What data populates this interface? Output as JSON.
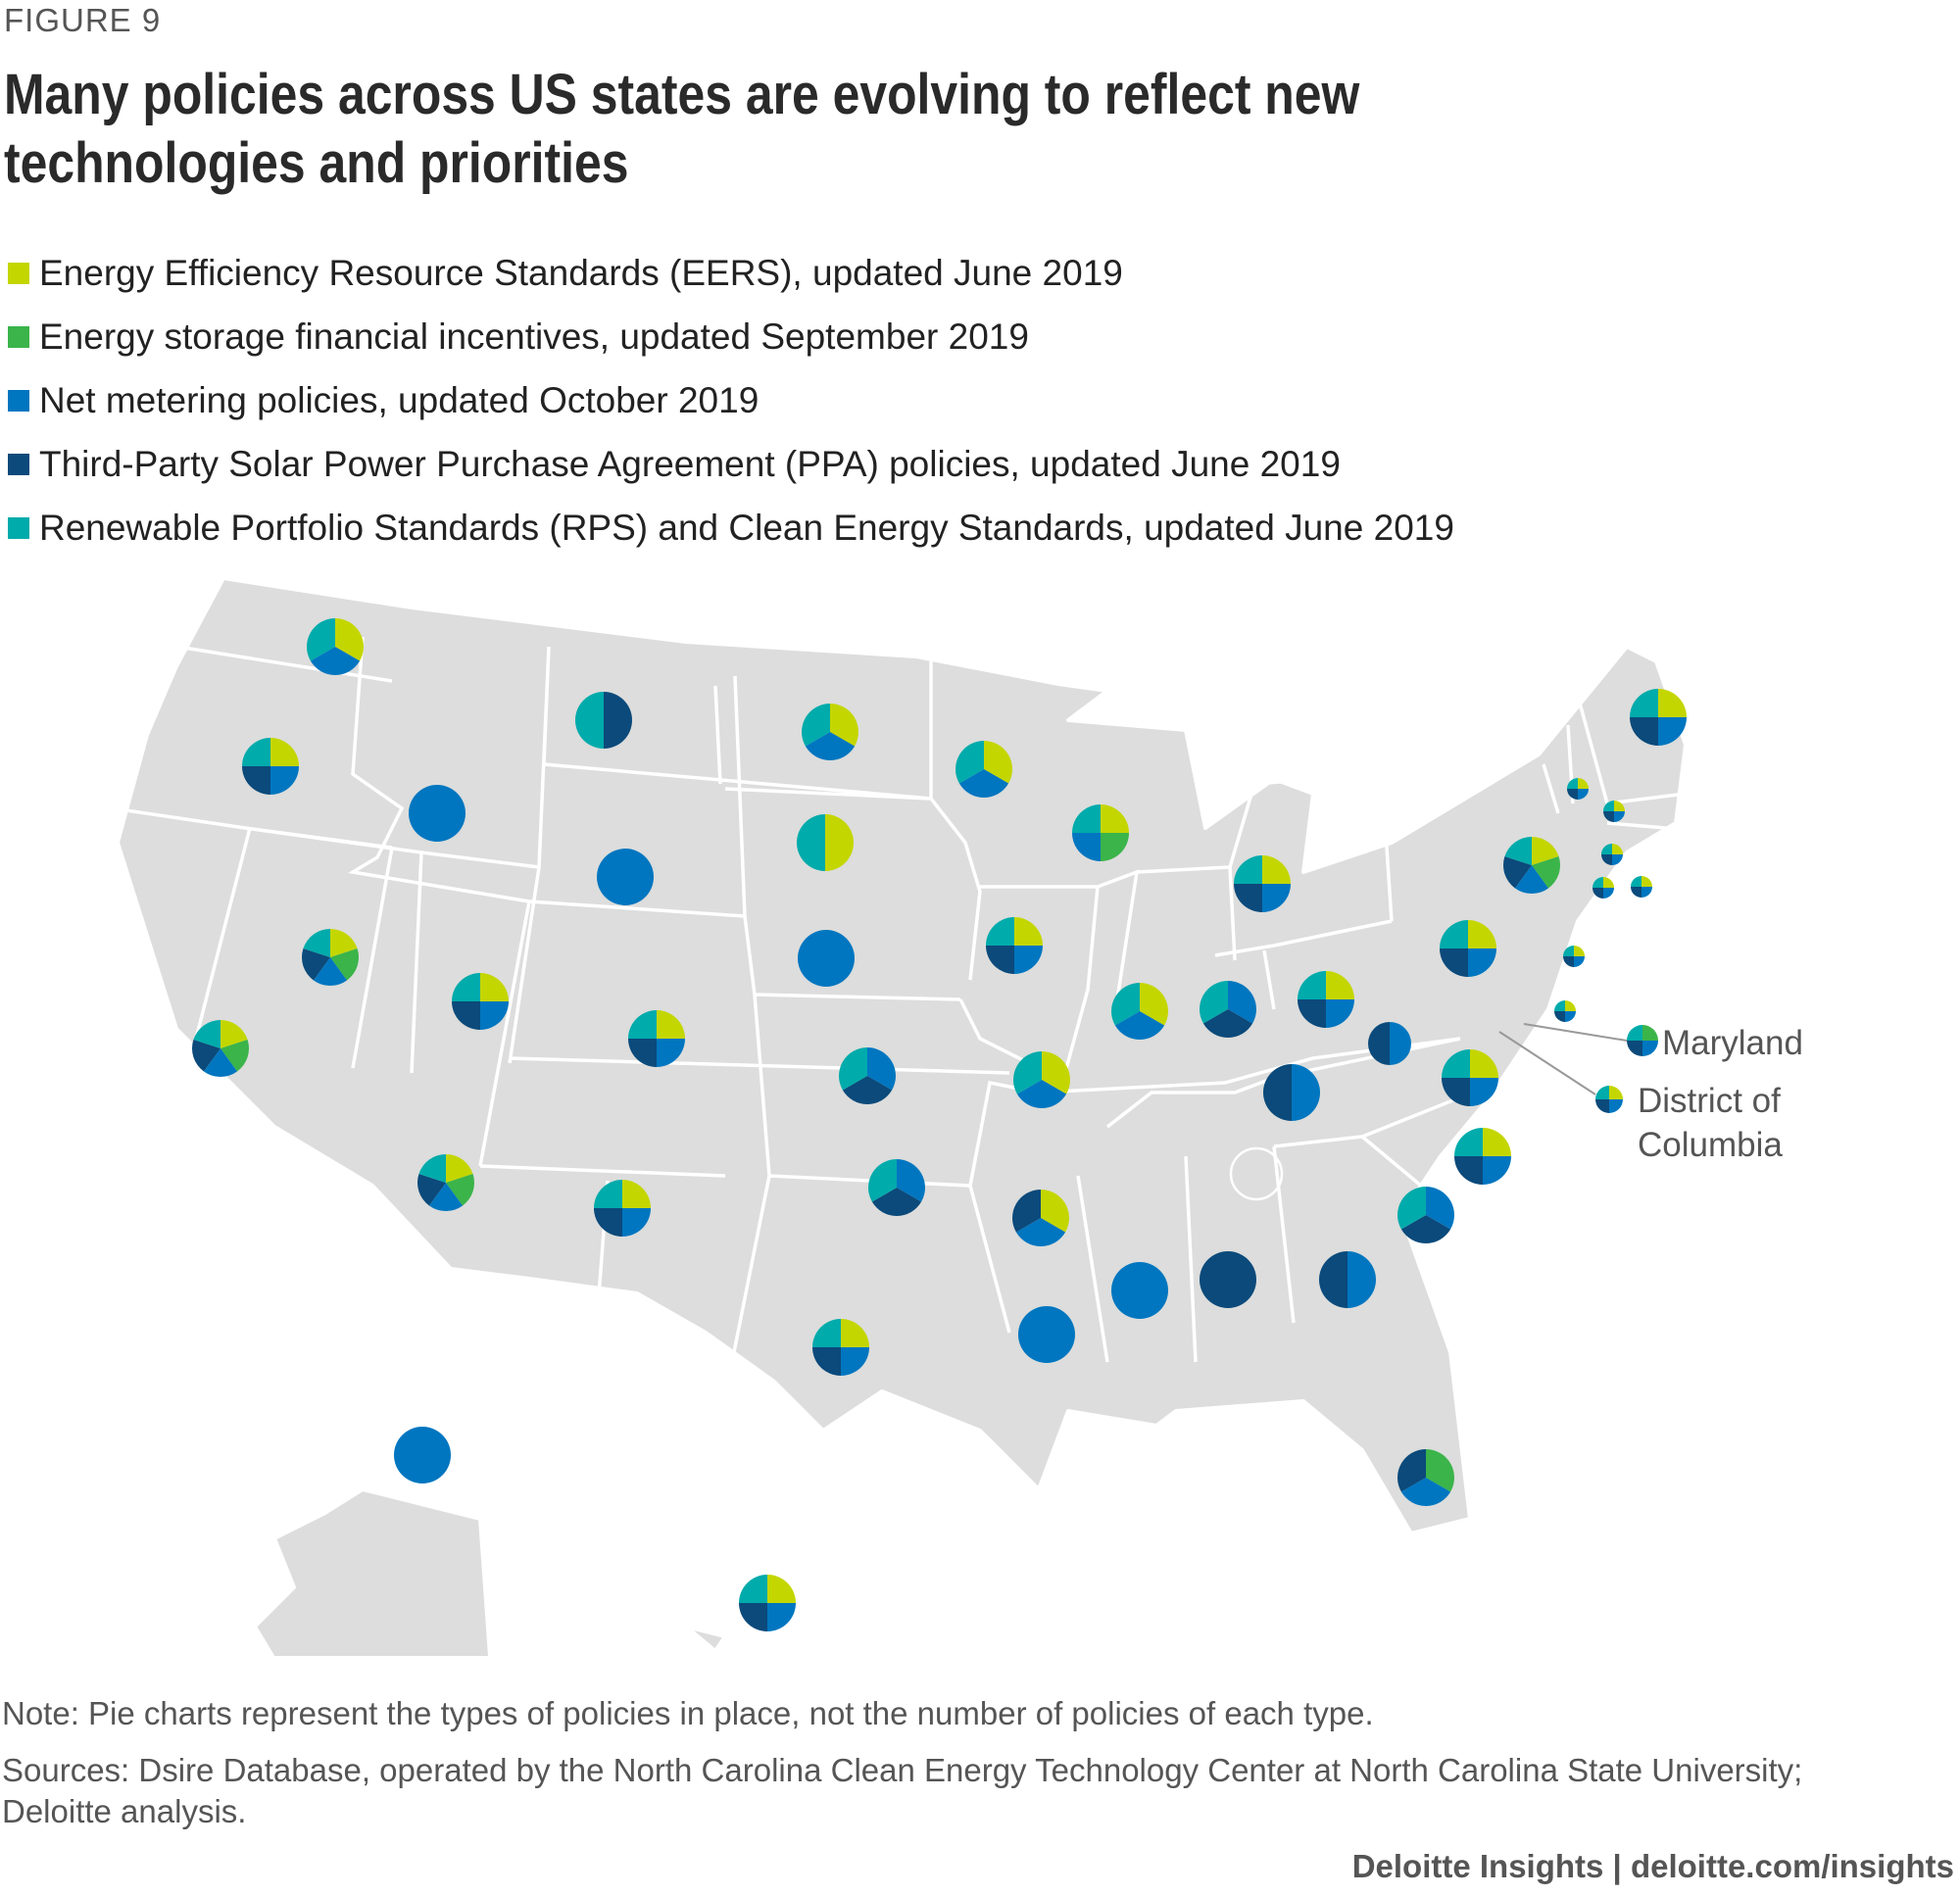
{
  "figure_label": "FIGURE 9",
  "title": "Many policies across US states are evolving to reflect new technologies and priorities",
  "legend": [
    {
      "key": "eers",
      "label": "Energy Efficiency Resource Standards (EERS), updated June 2019",
      "color": "#c4d600"
    },
    {
      "key": "storage",
      "label": "Energy storage financial incentives, updated September 2019",
      "color": "#3bb44a"
    },
    {
      "key": "net",
      "label": "Net metering policies, updated October 2019",
      "color": "#0076c0"
    },
    {
      "key": "ppa",
      "label": "Third-Party Solar Power Purchase Agreement (PPA) policies, updated June 2019",
      "color": "#0b4a7b"
    },
    {
      "key": "rps",
      "label": "Renewable Portfolio Standards (RPS) and Clean Energy Standards, updated June 2019",
      "color": "#00abab"
    }
  ],
  "callouts": {
    "maryland": "Maryland",
    "dc": "District of Columbia"
  },
  "note": "Note: Pie charts represent the types of policies in place, not the number of policies of each type.",
  "sources": "Sources: Dsire Database, operated by the North Carolina Clean Energy Technology Center at North Carolina State University; Deloitte analysis.",
  "brand": "Deloitte Insights | deloitte.com/insights",
  "chart_data": {
    "type": "pie",
    "title": "Policy types in place by US state",
    "series_order": [
      "eers",
      "storage",
      "net",
      "ppa",
      "rps"
    ],
    "states": [
      {
        "state": "WA",
        "policies": [
          "eers",
          "net",
          "rps"
        ]
      },
      {
        "state": "OR",
        "policies": [
          "eers",
          "net",
          "ppa",
          "rps"
        ]
      },
      {
        "state": "CA",
        "policies": [
          "eers",
          "storage",
          "net",
          "ppa",
          "rps"
        ]
      },
      {
        "state": "ID",
        "policies": [
          "net"
        ]
      },
      {
        "state": "NV",
        "policies": [
          "eers",
          "storage",
          "net",
          "ppa",
          "rps"
        ]
      },
      {
        "state": "MT",
        "policies": [
          "ppa",
          "rps"
        ]
      },
      {
        "state": "WY",
        "policies": [
          "net"
        ]
      },
      {
        "state": "UT",
        "policies": [
          "eers",
          "net",
          "ppa",
          "rps"
        ]
      },
      {
        "state": "AZ",
        "policies": [
          "eers",
          "storage",
          "net",
          "ppa",
          "rps"
        ]
      },
      {
        "state": "CO",
        "policies": [
          "eers",
          "net",
          "ppa",
          "rps"
        ]
      },
      {
        "state": "NM",
        "policies": [
          "eers",
          "net",
          "ppa",
          "rps"
        ]
      },
      {
        "state": "ND",
        "policies": [
          "eers",
          "net",
          "rps"
        ]
      },
      {
        "state": "SD",
        "policies": [
          "eers",
          "rps"
        ]
      },
      {
        "state": "NE",
        "policies": [
          "net"
        ]
      },
      {
        "state": "KS",
        "policies": [
          "net",
          "ppa",
          "rps"
        ]
      },
      {
        "state": "OK",
        "policies": [
          "net",
          "ppa",
          "rps"
        ]
      },
      {
        "state": "TX",
        "policies": [
          "eers",
          "net",
          "ppa",
          "rps"
        ]
      },
      {
        "state": "MN",
        "policies": [
          "eers",
          "net",
          "rps"
        ]
      },
      {
        "state": "IA",
        "policies": [
          "eers",
          "net",
          "ppa",
          "rps"
        ]
      },
      {
        "state": "MO",
        "policies": [
          "eers",
          "net",
          "rps"
        ]
      },
      {
        "state": "AR",
        "policies": [
          "eers",
          "net",
          "ppa"
        ]
      },
      {
        "state": "LA",
        "policies": [
          "net"
        ]
      },
      {
        "state": "WI",
        "policies": [
          "eers",
          "storage",
          "net",
          "rps"
        ]
      },
      {
        "state": "IL",
        "policies": [
          "eers",
          "net",
          "rps"
        ]
      },
      {
        "state": "MI",
        "policies": [
          "eers",
          "net",
          "ppa",
          "rps"
        ]
      },
      {
        "state": "IN",
        "policies": [
          "net",
          "ppa",
          "rps"
        ]
      },
      {
        "state": "OH",
        "policies": [
          "eers",
          "net",
          "ppa",
          "rps"
        ]
      },
      {
        "state": "KY",
        "policies": [
          "net",
          "ppa"
        ]
      },
      {
        "state": "TN",
        "policies": []
      },
      {
        "state": "MS",
        "policies": [
          "net"
        ]
      },
      {
        "state": "AL",
        "policies": [
          "ppa"
        ]
      },
      {
        "state": "GA",
        "policies": [
          "net",
          "ppa"
        ]
      },
      {
        "state": "FL",
        "policies": [
          "storage",
          "net",
          "ppa"
        ]
      },
      {
        "state": "SC",
        "policies": [
          "net",
          "ppa",
          "rps"
        ]
      },
      {
        "state": "NC",
        "policies": [
          "eers",
          "net",
          "ppa",
          "rps"
        ]
      },
      {
        "state": "VA",
        "policies": [
          "eers",
          "net",
          "ppa",
          "rps"
        ]
      },
      {
        "state": "WV",
        "policies": [
          "net",
          "ppa"
        ]
      },
      {
        "state": "PA",
        "policies": [
          "eers",
          "net",
          "ppa",
          "rps"
        ]
      },
      {
        "state": "NY",
        "policies": [
          "eers",
          "storage",
          "net",
          "ppa",
          "rps"
        ]
      },
      {
        "state": "ME",
        "policies": [
          "eers",
          "net",
          "ppa",
          "rps"
        ]
      },
      {
        "state": "VT",
        "policies": [
          "eers",
          "net",
          "ppa",
          "rps"
        ]
      },
      {
        "state": "NH",
        "policies": [
          "eers",
          "net",
          "ppa",
          "rps"
        ]
      },
      {
        "state": "MA",
        "policies": [
          "eers",
          "net",
          "ppa",
          "rps"
        ]
      },
      {
        "state": "RI",
        "policies": [
          "eers",
          "net",
          "ppa",
          "rps"
        ]
      },
      {
        "state": "CT",
        "policies": [
          "eers",
          "net",
          "ppa",
          "rps"
        ]
      },
      {
        "state": "NJ",
        "policies": [
          "eers",
          "net",
          "ppa",
          "rps"
        ]
      },
      {
        "state": "DE",
        "policies": [
          "eers",
          "net",
          "ppa",
          "rps"
        ]
      },
      {
        "state": "MD",
        "policies": [
          "storage",
          "net",
          "ppa",
          "rps"
        ]
      },
      {
        "state": "DC",
        "policies": [
          "eers",
          "net",
          "ppa",
          "rps"
        ]
      },
      {
        "state": "AK",
        "policies": [
          "net"
        ]
      },
      {
        "state": "HI",
        "policies": [
          "eers",
          "net",
          "ppa",
          "rps"
        ]
      }
    ]
  }
}
